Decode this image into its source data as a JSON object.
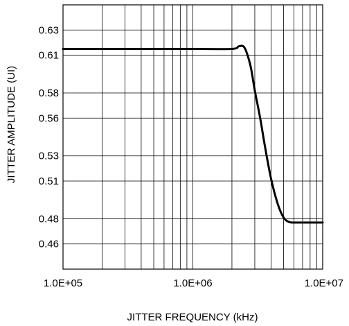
{
  "chart_data": {
    "type": "line",
    "title": "",
    "xlabel": "JITTER FREQUENCY (kHz)",
    "ylabel": "JITTER AMPLITUDE (UI)",
    "x_scale": "log",
    "xlim": [
      100000,
      10000000
    ],
    "ylim": [
      0.44,
      0.65
    ],
    "x_ticks": [
      100000,
      1000000,
      10000000
    ],
    "x_tick_labels": [
      "1.0E+05",
      "1.0E+06",
      "1.0E+07"
    ],
    "y_ticks": [
      0.46,
      0.48,
      0.51,
      0.53,
      0.56,
      0.58,
      0.61,
      0.63
    ],
    "y_tick_labels": [
      "0.46",
      "0.48",
      "0.51",
      "0.53",
      "0.56",
      "0.58",
      "0.61",
      "0.63"
    ],
    "grid": true,
    "legend": "none",
    "colors": {
      "line": "#000000",
      "grid": "#000000",
      "background": "#ffffff"
    },
    "series": [
      {
        "x": [
          100000,
          1000000,
          2000000,
          2250000,
          2450000,
          2600000,
          2800000,
          3000000,
          3300000,
          3600000,
          4000000,
          4500000,
          5000000,
          5500000,
          6000000,
          8000000,
          10000000
        ],
        "y": [
          0.615,
          0.615,
          0.615,
          0.617,
          0.617,
          0.612,
          0.6,
          0.582,
          0.56,
          0.537,
          0.512,
          0.492,
          0.481,
          0.4775,
          0.477,
          0.477,
          0.477
        ]
      }
    ]
  }
}
